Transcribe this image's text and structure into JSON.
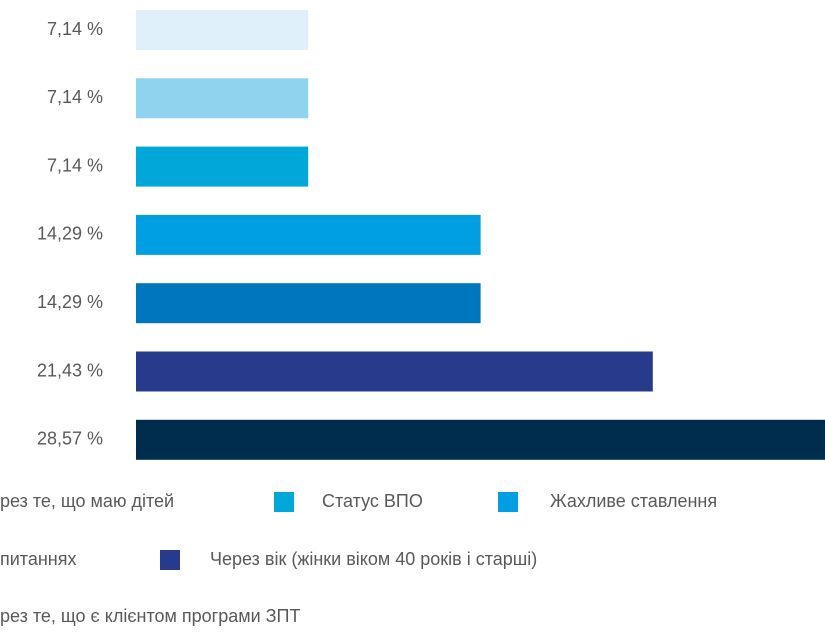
{
  "chart_data": {
    "type": "bar",
    "orientation": "horizontal",
    "categories": [
      null,
      null,
      null,
      null,
      null,
      null,
      null
    ],
    "values": [
      7.14,
      7.14,
      7.14,
      14.29,
      14.29,
      21.43,
      28.57
    ],
    "value_labels": [
      "7,14 %",
      "7,14 %",
      "7,14 %",
      "14,29 %",
      "14,29 %",
      "21,43 %",
      "28,57 %"
    ],
    "colors": [
      "#dff0fb",
      "#8fd3ef",
      "#00a7d8",
      "#009fe3",
      "#0076be",
      "#283a8c",
      "#002d4d"
    ],
    "legend": [
      {
        "name": "рез те, що маю дітей"
      },
      {
        "name": "Статус ВПО",
        "color": "#00a7d8"
      },
      {
        "name": "Жахливе ставлення",
        "color": "#009fe3"
      },
      {
        "name": "питаннях"
      },
      {
        "name": "Через вік (жінки віком 40 років і старші)",
        "color": "#283a8c"
      },
      {
        "name": "рез те, що є клієнтом програми ЗПТ"
      }
    ]
  }
}
